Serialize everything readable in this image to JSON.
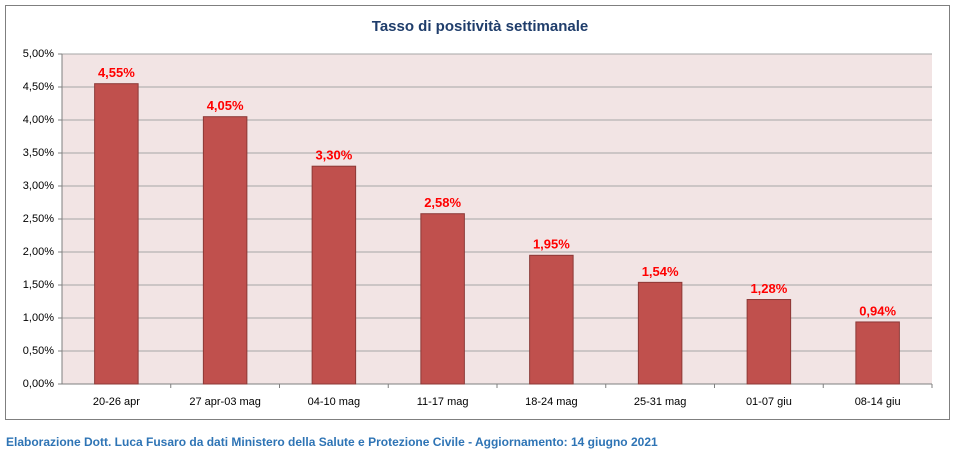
{
  "chart_data": {
    "type": "bar",
    "title": "Tasso di positività settimanale",
    "categories": [
      "20-26 apr",
      "27 apr-03 mag",
      "04-10 mag",
      "11-17 mag",
      "18-24 mag",
      "25-31 mag",
      "01-07 giu",
      "08-14 giu"
    ],
    "values": [
      4.55,
      4.05,
      3.3,
      2.58,
      1.95,
      1.54,
      1.28,
      0.94
    ],
    "value_labels": [
      "4,55%",
      "4,05%",
      "3,30%",
      "2,58%",
      "1,95%",
      "1,54%",
      "1,28%",
      "0,94%"
    ],
    "color": "#c0504d",
    "ylim": [
      0,
      5
    ],
    "yticks": [
      {
        "value": 0,
        "label": "0,00%"
      },
      {
        "value": 0.5,
        "label": "0,50%"
      },
      {
        "value": 1,
        "label": "1,00%"
      },
      {
        "value": 1.5,
        "label": "1,50%"
      },
      {
        "value": 2,
        "label": "2,00%"
      },
      {
        "value": 2.5,
        "label": "2,50%"
      },
      {
        "value": 3,
        "label": "3,00%"
      },
      {
        "value": 3.5,
        "label": "3,50%"
      },
      {
        "value": 4,
        "label": "4,00%"
      },
      {
        "value": 4.5,
        "label": "4,50%"
      },
      {
        "value": 5,
        "label": "5,00%"
      }
    ],
    "grid": true,
    "source": "Elaborazione Dott. Luca Fusaro da dati Ministero della Salute e Protezione Civile - Aggiornamento: 14 giugno 2021"
  }
}
